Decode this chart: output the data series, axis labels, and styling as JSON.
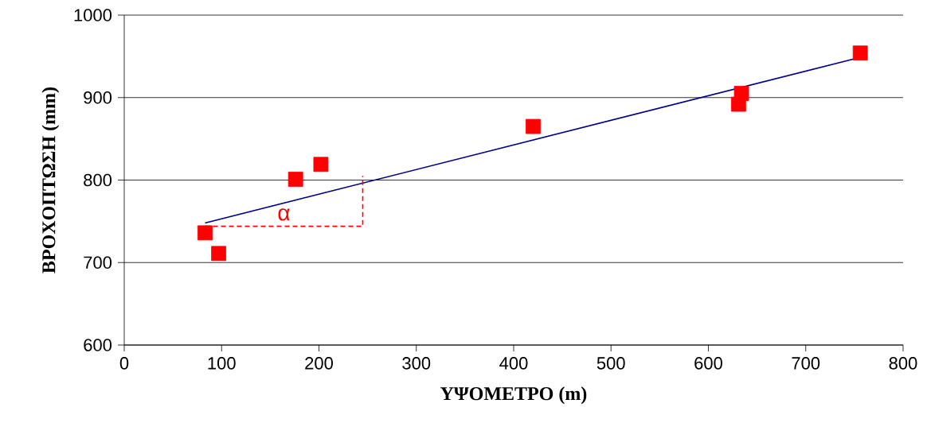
{
  "chart_data": {
    "type": "scatter",
    "xlabel": "ΥΨΟΜΕΤΡΟ (m)",
    "ylabel": "ΒΡΟΧΟΠΤΩΣΗ (mm)",
    "xlim": [
      0,
      800
    ],
    "ylim": [
      600,
      1000
    ],
    "xticks": [
      0,
      100,
      200,
      300,
      400,
      500,
      600,
      700,
      800
    ],
    "yticks": [
      600,
      700,
      800,
      900,
      1000
    ],
    "grid": "y",
    "legend": false,
    "marker": "square",
    "series": [
      {
        "color": "#ff0000",
        "x": [
          83,
          97,
          176,
          202,
          420,
          631,
          634,
          756
        ],
        "values": [
          736,
          711,
          801,
          819,
          865,
          892,
          905,
          954
        ]
      },
      {
        "type": "line",
        "color": "#00008b",
        "marker": "none",
        "line_style": "solid",
        "x": [
          83,
          750
        ],
        "values": [
          748,
          947
        ]
      },
      {
        "type": "line",
        "color": "#ff0000",
        "marker": "none",
        "line_style": "dashed",
        "x": [
          83,
          245,
          245
        ],
        "values": [
          744,
          744,
          805
        ]
      }
    ],
    "annotations": [
      "α"
    ]
  }
}
